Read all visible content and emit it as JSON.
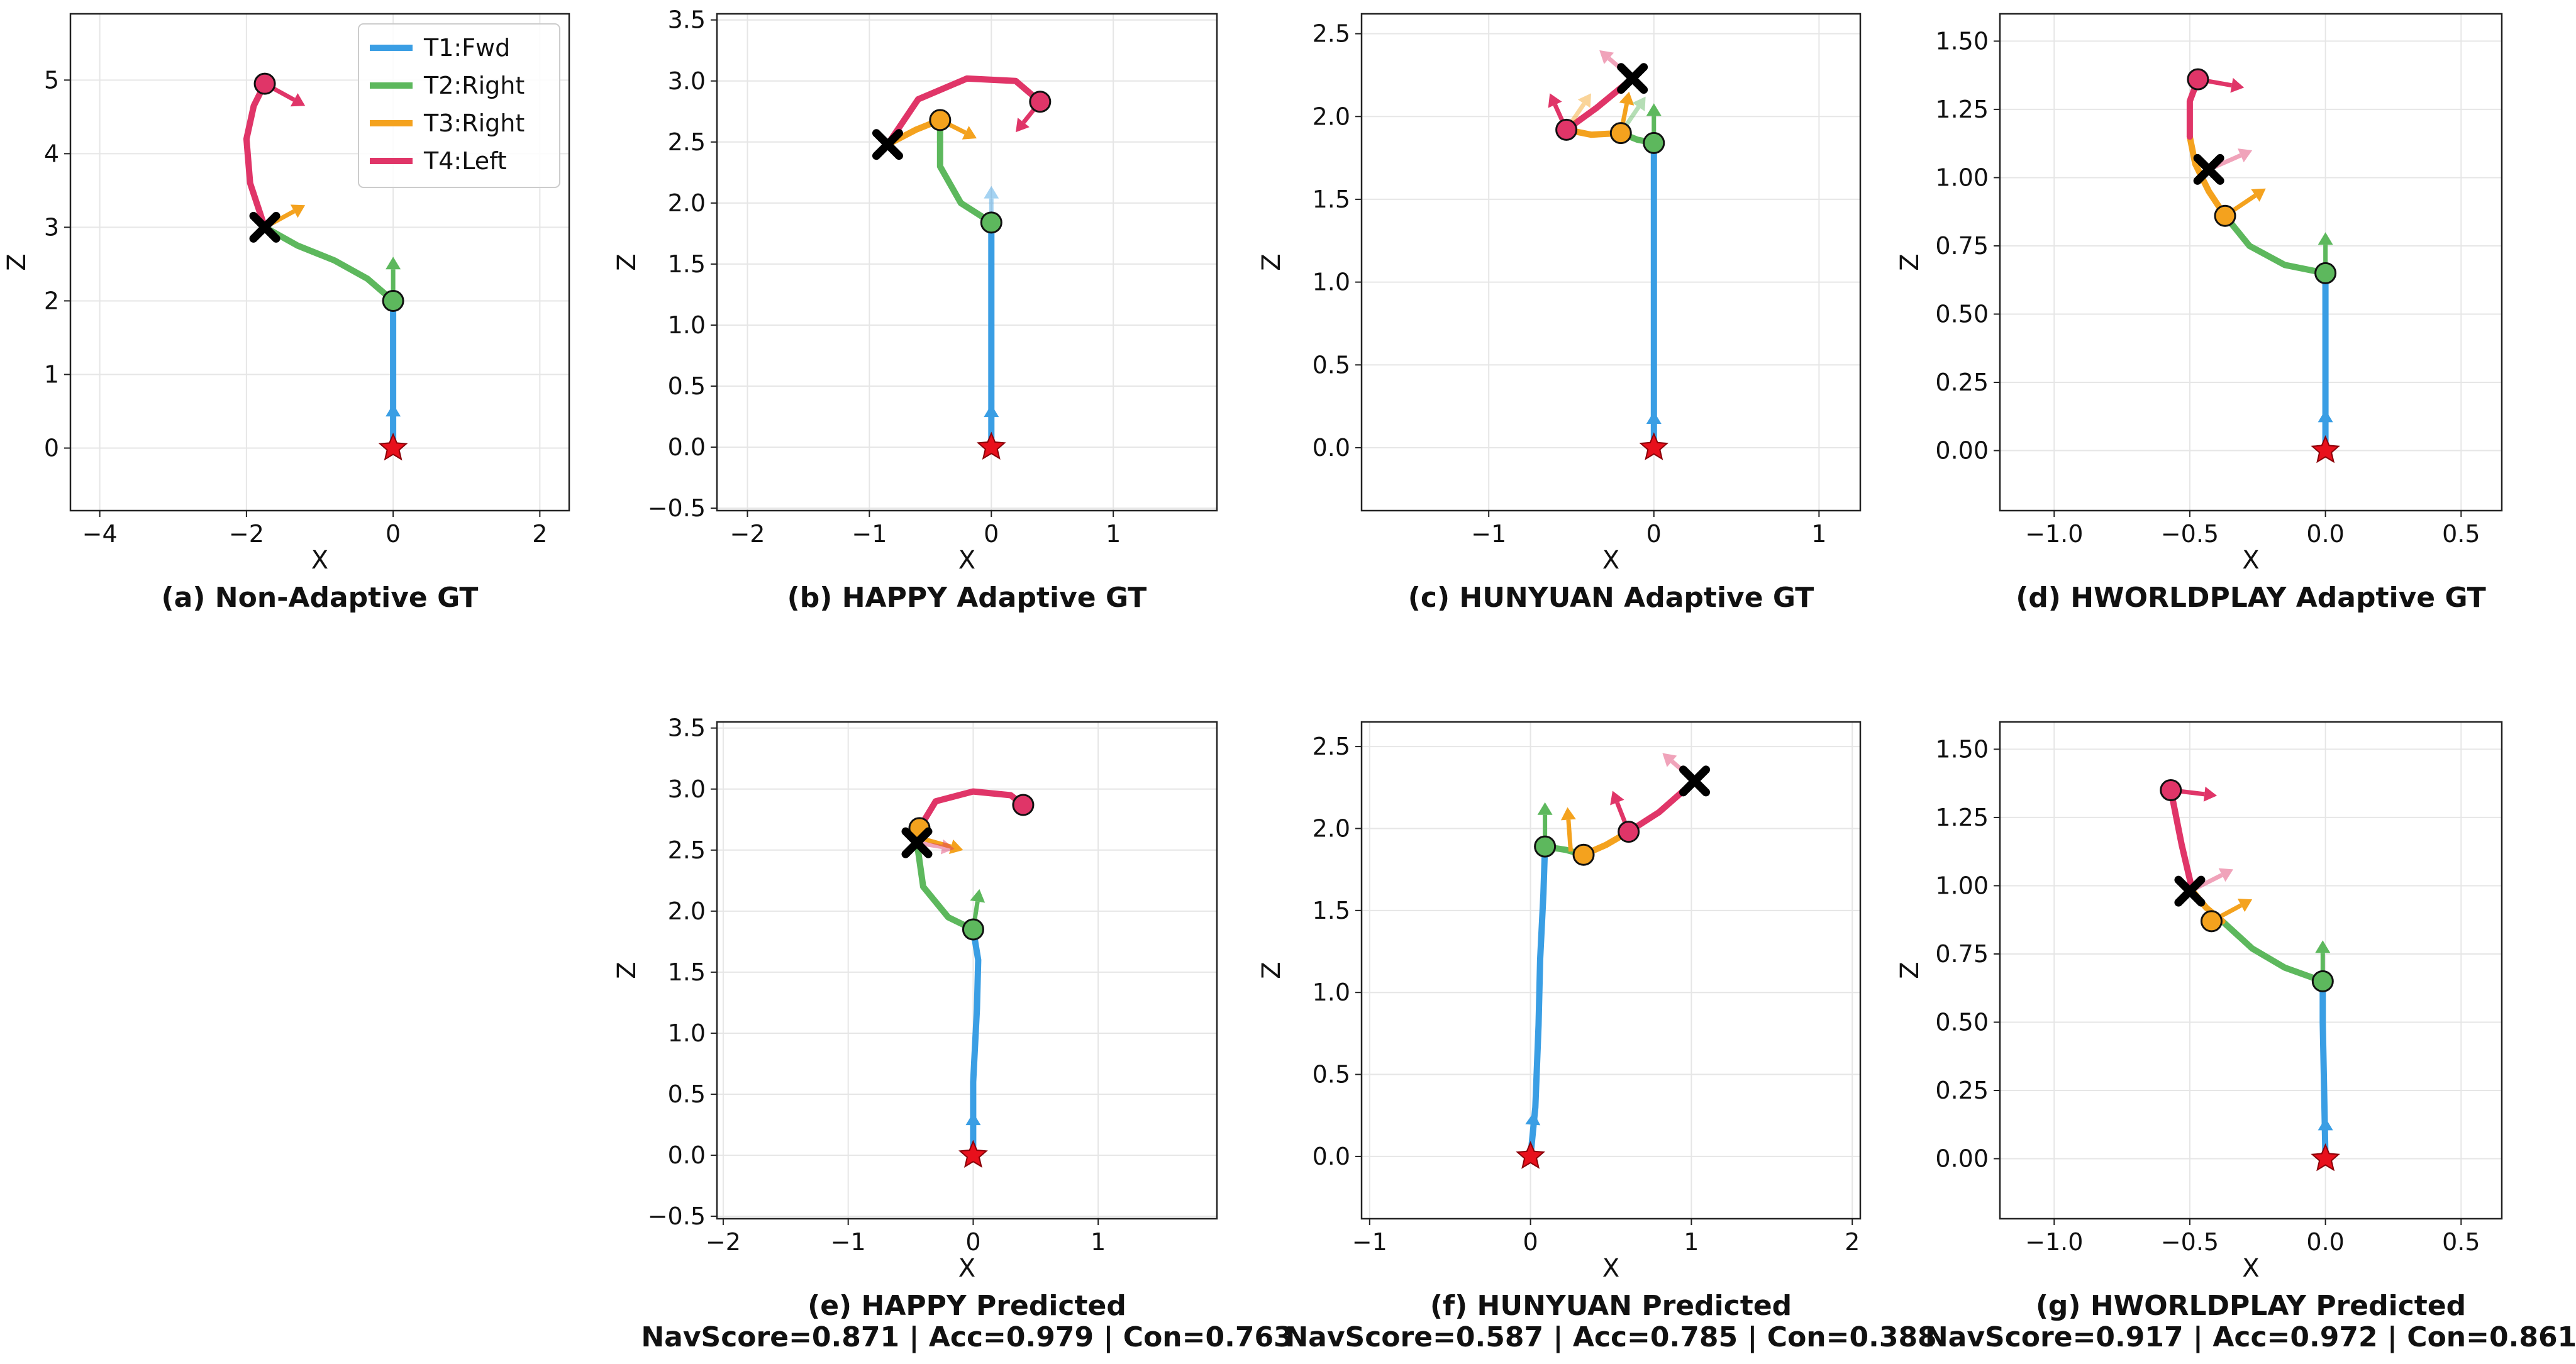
{
  "legend": {
    "entries": [
      {
        "label": "T1:Fwd",
        "color": "#3a9ee4"
      },
      {
        "label": "T2:Right",
        "color": "#5db85d"
      },
      {
        "label": "T3:Right",
        "color": "#f4a21e"
      },
      {
        "label": "T4:Left",
        "color": "#e03568"
      }
    ]
  },
  "chart_data": [
    {
      "type": "line",
      "caption": "(a) Non-Adaptive GT",
      "xlabel": "X",
      "ylabel": "Z",
      "xlim": [
        -4.4,
        2.4
      ],
      "ylim": [
        -0.85,
        5.9
      ],
      "xticks": [
        -4,
        -2,
        0,
        2
      ],
      "yticks": [
        0,
        1,
        2,
        3,
        4,
        5
      ],
      "xtick_labels": [
        "−4",
        "−2",
        "0",
        "2"
      ],
      "ytick_labels": [
        "0",
        "1",
        "2",
        "3",
        "4",
        "5"
      ],
      "grid": true,
      "legend": "top-right",
      "series": [
        {
          "name": "T1:Fwd",
          "x": [
            0,
            0
          ],
          "y": [
            0,
            2.0
          ]
        },
        {
          "name": "T2:Right",
          "x": [
            0,
            -0.35,
            -0.8,
            -1.3,
            -1.75
          ],
          "y": [
            2.0,
            2.3,
            2.55,
            2.75,
            3.0
          ]
        },
        {
          "name": "T3:Right",
          "x": [
            -1.75,
            -1.75
          ],
          "y": [
            3.0,
            3.0
          ]
        },
        {
          "name": "T4:Left",
          "x": [
            -1.75,
            -1.95,
            -2.0,
            -1.9,
            -1.75
          ],
          "y": [
            3.0,
            3.6,
            4.2,
            4.65,
            4.95
          ]
        }
      ],
      "start": [
        0,
        0
      ],
      "end": [
        -1.75,
        3.0
      ],
      "waypoints": [
        [
          0,
          2.0,
          "T2:Right"
        ],
        [
          -1.75,
          4.95,
          "T4:Left"
        ]
      ],
      "headings": [
        {
          "x": 0,
          "y": 0,
          "dx": 0,
          "dy": 0.6,
          "series": "T1:Fwd",
          "faded": false
        },
        {
          "x": 0,
          "y": 2.0,
          "dx": 0,
          "dy": 0.6,
          "series": "T2:Right",
          "faded": false
        },
        {
          "x": -1.75,
          "y": 3.0,
          "dx": 0.55,
          "dy": 0.3,
          "series": "T3:Right",
          "faded": false
        },
        {
          "x": -1.75,
          "y": 4.95,
          "dx": 0.55,
          "dy": -0.3,
          "series": "T4:Left",
          "faded": false
        }
      ]
    },
    {
      "type": "line",
      "caption": "(b) HAPPY Adaptive GT",
      "xlabel": "X",
      "ylabel": "Z",
      "xlim": [
        -2.25,
        1.85
      ],
      "ylim": [
        -0.52,
        3.55
      ],
      "xticks": [
        -2,
        -1,
        0,
        1
      ],
      "yticks": [
        -0.5,
        0,
        0.5,
        1,
        1.5,
        2,
        2.5,
        3,
        3.5
      ],
      "xtick_labels": [
        "−2",
        "−1",
        "0",
        "1"
      ],
      "ytick_labels": [
        "−0.5",
        "0.0",
        "0.5",
        "1.0",
        "1.5",
        "2.0",
        "2.5",
        "3.0",
        "3.5"
      ],
      "grid": true,
      "series": [
        {
          "name": "T1:Fwd",
          "x": [
            0,
            0
          ],
          "y": [
            0,
            1.84
          ]
        },
        {
          "name": "T2:Right",
          "x": [
            0,
            -0.25,
            -0.42,
            -0.42
          ],
          "y": [
            1.84,
            2.0,
            2.3,
            2.68
          ]
        },
        {
          "name": "T3:Right",
          "x": [
            -0.42,
            -0.62,
            -0.85
          ],
          "y": [
            2.68,
            2.6,
            2.48
          ]
        },
        {
          "name": "T4:Left",
          "x": [
            -0.85,
            -0.6,
            -0.2,
            0.2,
            0.4
          ],
          "y": [
            2.48,
            2.85,
            3.02,
            3.0,
            2.83
          ]
        }
      ],
      "start": [
        0,
        0
      ],
      "end": [
        -0.85,
        2.48
      ],
      "waypoints": [
        [
          0,
          1.84,
          "T2:Right"
        ],
        [
          -0.42,
          2.68,
          "T3:Right"
        ],
        [
          0.4,
          2.83,
          "T4:Left"
        ]
      ],
      "headings": [
        {
          "x": 0,
          "y": 0,
          "dx": 0,
          "dy": 0.35,
          "series": "T1:Fwd",
          "faded": false
        },
        {
          "x": 0,
          "y": 1.84,
          "dx": 0,
          "dy": 0.3,
          "series": "T1:Fwd",
          "faded": true
        },
        {
          "x": -0.42,
          "y": 2.68,
          "dx": 0.3,
          "dy": -0.15,
          "series": "T3:Right",
          "faded": false
        },
        {
          "x": 0.4,
          "y": 2.83,
          "dx": -0.2,
          "dy": -0.25,
          "series": "T4:Left",
          "faded": false
        }
      ]
    },
    {
      "type": "line",
      "caption": "(c) HUNYUAN Adaptive GT",
      "xlabel": "X",
      "ylabel": "Z",
      "xlim": [
        -1.77,
        1.25
      ],
      "ylim": [
        -0.38,
        2.62
      ],
      "xticks": [
        -1,
        0,
        1
      ],
      "yticks": [
        0,
        0.5,
        1,
        1.5,
        2,
        2.5
      ],
      "xtick_labels": [
        "−1",
        "0",
        "1"
      ],
      "ytick_labels": [
        "0.0",
        "0.5",
        "1.0",
        "1.5",
        "2.0",
        "2.5"
      ],
      "grid": true,
      "series": [
        {
          "name": "T1:Fwd",
          "x": [
            0,
            0
          ],
          "y": [
            0,
            1.84
          ]
        },
        {
          "name": "T2:Right",
          "x": [
            0,
            -0.1,
            -0.2
          ],
          "y": [
            1.84,
            1.86,
            1.9
          ]
        },
        {
          "name": "T3:Right",
          "x": [
            -0.2,
            -0.38,
            -0.53
          ],
          "y": [
            1.9,
            1.89,
            1.92
          ]
        },
        {
          "name": "T4:Left",
          "x": [
            -0.53,
            -0.35,
            -0.13
          ],
          "y": [
            1.92,
            2.05,
            2.23
          ]
        }
      ],
      "start": [
        0,
        0
      ],
      "end": [
        -0.13,
        2.23
      ],
      "waypoints": [
        [
          0,
          1.84,
          "T2:Right"
        ],
        [
          -0.2,
          1.9,
          "T3:Right"
        ],
        [
          -0.53,
          1.92,
          "T4:Left"
        ]
      ],
      "headings": [
        {
          "x": 0,
          "y": 0,
          "dx": 0,
          "dy": 0.22,
          "series": "T1:Fwd",
          "faded": false
        },
        {
          "x": 0,
          "y": 1.84,
          "dx": 0,
          "dy": 0.24,
          "series": "T2:Right",
          "faded": false
        },
        {
          "x": -0.2,
          "y": 1.9,
          "dx": 0.05,
          "dy": 0.25,
          "series": "T3:Right",
          "faded": false
        },
        {
          "x": -0.53,
          "y": 1.92,
          "dx": -0.1,
          "dy": 0.22,
          "series": "T4:Left",
          "faded": false
        },
        {
          "x": -0.53,
          "y": 1.92,
          "dx": 0.15,
          "dy": 0.22,
          "series": "T3:Right",
          "faded": true
        },
        {
          "x": -0.2,
          "y": 1.9,
          "dx": 0.15,
          "dy": 0.22,
          "series": "T2:Right",
          "faded": true
        },
        {
          "x": -0.13,
          "y": 2.23,
          "dx": -0.2,
          "dy": 0.17,
          "series": "T4:Left",
          "faded": true
        }
      ]
    },
    {
      "type": "line",
      "caption": "(d) HWORLDPLAY Adaptive GT",
      "xlabel": "X",
      "ylabel": "Z",
      "xlim": [
        -1.2,
        0.65
      ],
      "ylim": [
        -0.22,
        1.6
      ],
      "xticks": [
        -1,
        -0.5,
        0,
        0.5
      ],
      "yticks": [
        0,
        0.25,
        0.5,
        0.75,
        1,
        1.25,
        1.5
      ],
      "xtick_labels": [
        "−1.0",
        "−0.5",
        "0.0",
        "0.5"
      ],
      "ytick_labels": [
        "0.00",
        "0.25",
        "0.50",
        "0.75",
        "1.00",
        "1.25",
        "1.50"
      ],
      "grid": true,
      "series": [
        {
          "name": "T1:Fwd",
          "x": [
            0,
            0
          ],
          "y": [
            0,
            0.65
          ]
        },
        {
          "name": "T2:Right",
          "x": [
            0,
            -0.15,
            -0.28,
            -0.37
          ],
          "y": [
            0.65,
            0.68,
            0.75,
            0.86
          ]
        },
        {
          "name": "T3:Right",
          "x": [
            -0.37,
            -0.43,
            -0.48,
            -0.5
          ],
          "y": [
            0.86,
            0.95,
            1.05,
            1.15
          ]
        },
        {
          "name": "T4:Left",
          "x": [
            -0.5,
            -0.5,
            -0.47
          ],
          "y": [
            1.15,
            1.28,
            1.36
          ]
        }
      ],
      "start": [
        0,
        0
      ],
      "end": [
        -0.43,
        1.03
      ],
      "waypoints": [
        [
          0,
          0.65,
          "T2:Right"
        ],
        [
          -0.37,
          0.86,
          "T3:Right"
        ],
        [
          -0.47,
          1.36,
          "T4:Left"
        ]
      ],
      "headings": [
        {
          "x": 0,
          "y": 0,
          "dx": 0,
          "dy": 0.15,
          "series": "T1:Fwd",
          "faded": false
        },
        {
          "x": 0,
          "y": 0.65,
          "dx": 0,
          "dy": 0.15,
          "series": "T2:Right",
          "faded": false
        },
        {
          "x": -0.37,
          "y": 0.86,
          "dx": 0.15,
          "dy": 0.1,
          "series": "T3:Right",
          "faded": false
        },
        {
          "x": -0.47,
          "y": 1.36,
          "dx": 0.17,
          "dy": -0.03,
          "series": "T4:Left",
          "faded": false
        },
        {
          "x": -0.43,
          "y": 1.03,
          "dx": 0.16,
          "dy": 0.07,
          "series": "T4:Left",
          "faded": true
        }
      ]
    },
    {
      "type": "line",
      "caption": "(e) HAPPY Predicted",
      "subcaption": "NavScore=0.871 | Acc=0.979 | Con=0.763",
      "xlabel": "X",
      "ylabel": "Z",
      "xlim": [
        -2.05,
        1.95
      ],
      "ylim": [
        -0.52,
        3.55
      ],
      "xticks": [
        -2,
        -1,
        0,
        1
      ],
      "yticks": [
        -0.5,
        0,
        0.5,
        1,
        1.5,
        2,
        2.5,
        3,
        3.5
      ],
      "xtick_labels": [
        "−2",
        "−1",
        "0",
        "1"
      ],
      "ytick_labels": [
        "−0.5",
        "0.0",
        "0.5",
        "1.0",
        "1.5",
        "2.0",
        "2.5",
        "3.0",
        "3.5"
      ],
      "grid": true,
      "series": [
        {
          "name": "T1:Fwd",
          "x": [
            0,
            0.0,
            0.03,
            0.04,
            0.0
          ],
          "y": [
            0,
            0.6,
            1.2,
            1.6,
            1.85
          ]
        },
        {
          "name": "T2:Right",
          "x": [
            0,
            -0.2,
            -0.4,
            -0.45
          ],
          "y": [
            1.85,
            1.95,
            2.2,
            2.56
          ]
        },
        {
          "name": "T3:Right",
          "x": [
            -0.45,
            -0.43
          ],
          "y": [
            2.56,
            2.68
          ]
        },
        {
          "name": "T4:Left",
          "x": [
            -0.43,
            -0.3,
            0.0,
            0.3,
            0.4
          ],
          "y": [
            2.68,
            2.9,
            2.98,
            2.95,
            2.87
          ]
        }
      ],
      "start": [
        0,
        0
      ],
      "end": [
        -0.45,
        2.56
      ],
      "waypoints": [
        [
          0,
          1.85,
          "T2:Right"
        ],
        [
          -0.43,
          2.68,
          "T3:Right"
        ],
        [
          0.4,
          2.87,
          "T4:Left"
        ]
      ],
      "headings": [
        {
          "x": 0,
          "y": 0,
          "dx": 0,
          "dy": 0.35,
          "series": "T1:Fwd",
          "faded": false
        },
        {
          "x": 0,
          "y": 1.85,
          "dx": 0.05,
          "dy": 0.33,
          "series": "T2:Right",
          "faded": false
        },
        {
          "x": -0.43,
          "y": 2.6,
          "dx": 0.35,
          "dy": -0.1,
          "series": "T3:Right",
          "faded": false
        },
        {
          "x": -0.45,
          "y": 2.56,
          "dx": 0.3,
          "dy": -0.05,
          "series": "T4:Left",
          "faded": true
        }
      ]
    },
    {
      "type": "line",
      "caption": "(f) HUNYUAN Predicted",
      "subcaption": "NavScore=0.587 | Acc=0.785 | Con=0.388",
      "xlabel": "X",
      "ylabel": "Z",
      "xlim": [
        -1.05,
        2.05
      ],
      "ylim": [
        -0.38,
        2.65
      ],
      "xticks": [
        -1,
        0,
        1,
        2
      ],
      "yticks": [
        0,
        0.5,
        1,
        1.5,
        2,
        2.5
      ],
      "xtick_labels": [
        "−1",
        "0",
        "1",
        "2"
      ],
      "ytick_labels": [
        "0.0",
        "0.5",
        "1.0",
        "1.5",
        "2.0",
        "2.5"
      ],
      "grid": true,
      "series": [
        {
          "name": "T1:Fwd",
          "x": [
            0,
            0.03,
            0.05,
            0.06,
            0.08,
            0.09
          ],
          "y": [
            0,
            0.3,
            0.8,
            1.2,
            1.6,
            1.89
          ]
        },
        {
          "name": "T2:Right",
          "x": [
            0.09,
            0.22,
            0.33
          ],
          "y": [
            1.89,
            1.87,
            1.84
          ]
        },
        {
          "name": "T3:Right",
          "x": [
            0.33,
            0.47,
            0.61
          ],
          "y": [
            1.84,
            1.9,
            1.98
          ]
        },
        {
          "name": "T4:Left",
          "x": [
            0.61,
            0.8,
            1.02
          ],
          "y": [
            1.98,
            2.1,
            2.29
          ]
        }
      ],
      "start": [
        0,
        0
      ],
      "end": [
        1.02,
        2.29
      ],
      "waypoints": [
        [
          0.09,
          1.89,
          "T2:Right"
        ],
        [
          0.33,
          1.84,
          "T3:Right"
        ],
        [
          0.61,
          1.98,
          "T4:Left"
        ]
      ],
      "headings": [
        {
          "x": 0,
          "y": 0,
          "dx": 0.02,
          "dy": 0.27,
          "series": "T1:Fwd",
          "faded": false
        },
        {
          "x": 0.09,
          "y": 1.89,
          "dx": 0.0,
          "dy": 0.27,
          "series": "T2:Right",
          "faded": false
        },
        {
          "x": 0.25,
          "y": 1.86,
          "dx": -0.02,
          "dy": 0.27,
          "series": "T3:Right",
          "faded": false
        },
        {
          "x": 0.61,
          "y": 1.98,
          "dx": -0.1,
          "dy": 0.25,
          "series": "T4:Left",
          "faded": false
        },
        {
          "x": 1.02,
          "y": 2.29,
          "dx": -0.2,
          "dy": 0.17,
          "series": "T4:Left",
          "faded": true
        }
      ]
    },
    {
      "type": "line",
      "caption": "(g) HWORLDPLAY Predicted",
      "subcaption": "NavScore=0.917 | Acc=0.972 | Con=0.861",
      "xlabel": "X",
      "ylabel": "Z",
      "xlim": [
        -1.2,
        0.65
      ],
      "ylim": [
        -0.22,
        1.6
      ],
      "xticks": [
        -1,
        -0.5,
        0,
        0.5
      ],
      "yticks": [
        0,
        0.25,
        0.5,
        0.75,
        1,
        1.25,
        1.5
      ],
      "xtick_labels": [
        "−1.0",
        "−0.5",
        "0.0",
        "0.5"
      ],
      "ytick_labels": [
        "0.00",
        "0.25",
        "0.50",
        "0.75",
        "1.00",
        "1.25",
        "1.50"
      ],
      "grid": true,
      "series": [
        {
          "name": "T1:Fwd",
          "x": [
            0,
            -0.005,
            -0.01,
            -0.01
          ],
          "y": [
            0,
            0.25,
            0.5,
            0.65
          ]
        },
        {
          "name": "T2:Right",
          "x": [
            -0.01,
            -0.15,
            -0.27,
            -0.38
          ],
          "y": [
            0.65,
            0.7,
            0.77,
            0.87
          ]
        },
        {
          "name": "T3:Right",
          "x": [
            -0.38,
            -0.44,
            -0.49
          ],
          "y": [
            0.87,
            0.92,
            0.98
          ]
        },
        {
          "name": "T4:Left",
          "x": [
            -0.49,
            -0.53,
            -0.57
          ],
          "y": [
            0.98,
            1.15,
            1.35
          ]
        }
      ],
      "start": [
        0,
        0
      ],
      "end": [
        -0.5,
        0.98
      ],
      "waypoints": [
        [
          -0.01,
          0.65,
          "T2:Right"
        ],
        [
          -0.42,
          0.87,
          "T3:Right"
        ],
        [
          -0.57,
          1.35,
          "T4:Left"
        ]
      ],
      "headings": [
        {
          "x": 0,
          "y": 0,
          "dx": 0,
          "dy": 0.15,
          "series": "T1:Fwd",
          "faded": false
        },
        {
          "x": -0.01,
          "y": 0.65,
          "dx": 0,
          "dy": 0.15,
          "series": "T2:Right",
          "faded": false
        },
        {
          "x": -0.42,
          "y": 0.87,
          "dx": 0.15,
          "dy": 0.08,
          "series": "T3:Right",
          "faded": false
        },
        {
          "x": -0.57,
          "y": 1.35,
          "dx": 0.17,
          "dy": -0.02,
          "series": "T4:Left",
          "faded": false
        },
        {
          "x": -0.5,
          "y": 0.98,
          "dx": 0.16,
          "dy": 0.08,
          "series": "T4:Left",
          "faded": true
        }
      ]
    }
  ]
}
